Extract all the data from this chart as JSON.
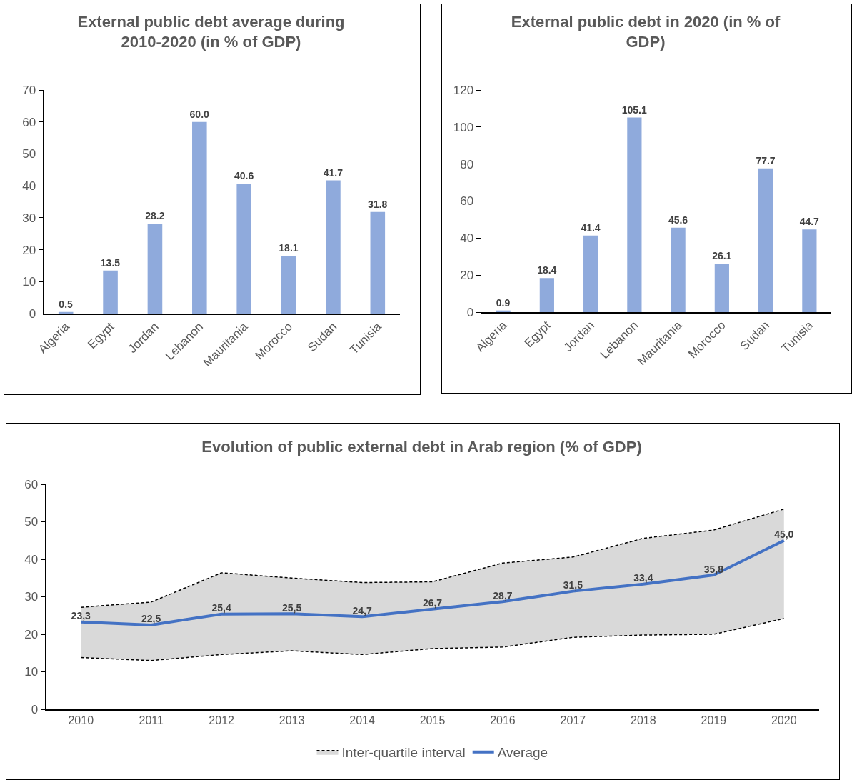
{
  "chart_data": [
    {
      "type": "bar",
      "title": "External public debt average during 2010-2020 (in % of GDP)",
      "categories": [
        "Algeria",
        "Egypt",
        "Jordan",
        "Lebanon",
        "Mauritania",
        "Morocco",
        "Sudan",
        "Tunisia"
      ],
      "values": [
        0.5,
        13.5,
        28.2,
        60.0,
        40.6,
        18.1,
        41.7,
        31.8
      ],
      "value_labels": [
        "0.5",
        "13.5",
        "28.2",
        "60.0",
        "40.6",
        "18.1",
        "41.7",
        "31.8"
      ],
      "color": "#8faadc",
      "ylim": [
        0,
        70
      ],
      "yticks": [
        0,
        10,
        20,
        30,
        40,
        50,
        60,
        70
      ],
      "grid": false,
      "legend": false
    },
    {
      "type": "bar",
      "title": "External public debt in 2020 (in % of GDP)",
      "categories": [
        "Algeria",
        "Egypt",
        "Jordan",
        "Lebanon",
        "Mauritania",
        "Morocco",
        "Sudan",
        "Tunisia"
      ],
      "values": [
        0.9,
        18.4,
        41.4,
        105.1,
        45.6,
        26.1,
        77.7,
        44.7
      ],
      "value_labels": [
        "0.9",
        "18.4",
        "41.4",
        "105.1",
        "45.6",
        "26.1",
        "77.7",
        "44.7"
      ],
      "color": "#8faadc",
      "ylim": [
        0,
        120
      ],
      "yticks": [
        0,
        20,
        40,
        60,
        80,
        100,
        120
      ],
      "grid": false,
      "legend": false
    },
    {
      "type": "line",
      "title": "Evolution of public external debt in Arab region (% of GDP)",
      "categories": [
        "2010",
        "2011",
        "2012",
        "2013",
        "2014",
        "2015",
        "2016",
        "2017",
        "2018",
        "2019",
        "2020"
      ],
      "ylim": [
        0,
        60
      ],
      "yticks": [
        0,
        10,
        20,
        30,
        40,
        50,
        60
      ],
      "grid": false,
      "legend": "bottom",
      "series": [
        {
          "type": "line",
          "color": "#000000",
          "line_style": "dashed",
          "values": [
            13.8,
            13.0,
            14.6,
            15.6,
            14.6,
            16.2,
            16.6,
            19.2,
            19.8,
            20.0,
            24.2
          ]
        },
        {
          "name": "Inter-quartile interval",
          "type": "area",
          "color": "#d9d9d9",
          "line_style": "dashed",
          "values": [
            27.2,
            28.6,
            36.4,
            35.0,
            33.8,
            34.0,
            39.0,
            40.6,
            45.6,
            47.8,
            53.4
          ]
        },
        {
          "name": "Average",
          "type": "line",
          "color": "#4472c4",
          "line_style": "solid",
          "values": [
            23.3,
            22.5,
            25.4,
            25.5,
            24.7,
            26.7,
            28.7,
            31.5,
            33.4,
            35.8,
            45.0
          ],
          "value_labels": [
            "23,3",
            "22,5",
            "25,4",
            "25,5",
            "24,7",
            "26,7",
            "28,7",
            "31,5",
            "33,4",
            "35,8",
            "45,0"
          ]
        }
      ]
    }
  ]
}
